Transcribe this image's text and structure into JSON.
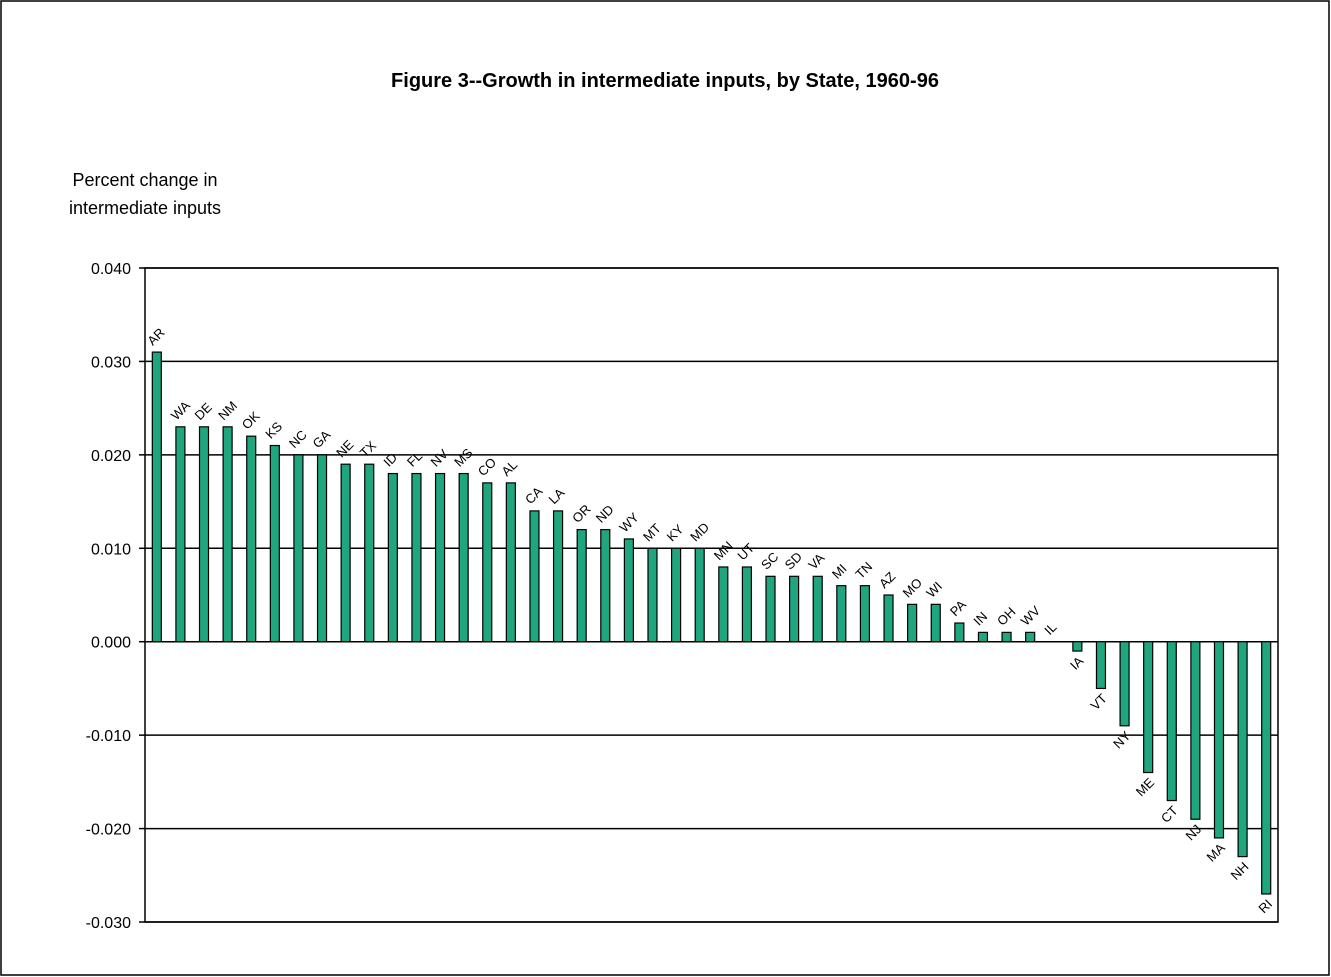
{
  "chart_data": {
    "type": "bar",
    "title": "Figure 3--Growth in intermediate inputs, by State, 1960-96",
    "ylabel": [
      "Percent change in",
      "intermediate inputs"
    ],
    "categories": [
      "AR",
      "WA",
      "DE",
      "NM",
      "OK",
      "KS",
      "NC",
      "GA",
      "NE",
      "TX",
      "ID",
      "FL",
      "NV",
      "MS",
      "CO",
      "AL",
      "CA",
      "LA",
      "OR",
      "ND",
      "WY",
      "MT",
      "KY",
      "MD",
      "MN",
      "UT",
      "SC",
      "SD",
      "VA",
      "MI",
      "TN",
      "AZ",
      "MO",
      "WI",
      "PA",
      "IN",
      "OH",
      "WV",
      "IL",
      "IA",
      "VT",
      "NY",
      "ME",
      "CT",
      "NJ",
      "MA",
      "NH",
      "RI"
    ],
    "values": [
      0.031,
      0.023,
      0.023,
      0.023,
      0.022,
      0.021,
      0.02,
      0.02,
      0.019,
      0.019,
      0.018,
      0.018,
      0.018,
      0.018,
      0.017,
      0.017,
      0.014,
      0.014,
      0.012,
      0.012,
      0.011,
      0.01,
      0.01,
      0.01,
      0.008,
      0.008,
      0.007,
      0.007,
      0.007,
      0.006,
      0.006,
      0.005,
      0.004,
      0.004,
      0.002,
      0.001,
      0.001,
      0.001,
      0,
      -0.001,
      -0.005,
      -0.009,
      -0.014,
      -0.017,
      -0.019,
      -0.021,
      -0.023,
      -0.027
    ],
    "color": "#1fa67f",
    "ylim": [
      -0.03,
      0.04
    ],
    "yticks": [
      {
        "value": -0.03,
        "label": "-0.030"
      },
      {
        "value": -0.02,
        "label": "-0.020"
      },
      {
        "value": -0.01,
        "label": "-0.010"
      },
      {
        "value": 0,
        "label": "0.000"
      },
      {
        "value": 0.01,
        "label": "0.010"
      },
      {
        "value": 0.02,
        "label": "0.020"
      },
      {
        "value": 0.03,
        "label": "0.030"
      },
      {
        "value": 0.04,
        "label": "0.040"
      }
    ],
    "grid": true
  }
}
